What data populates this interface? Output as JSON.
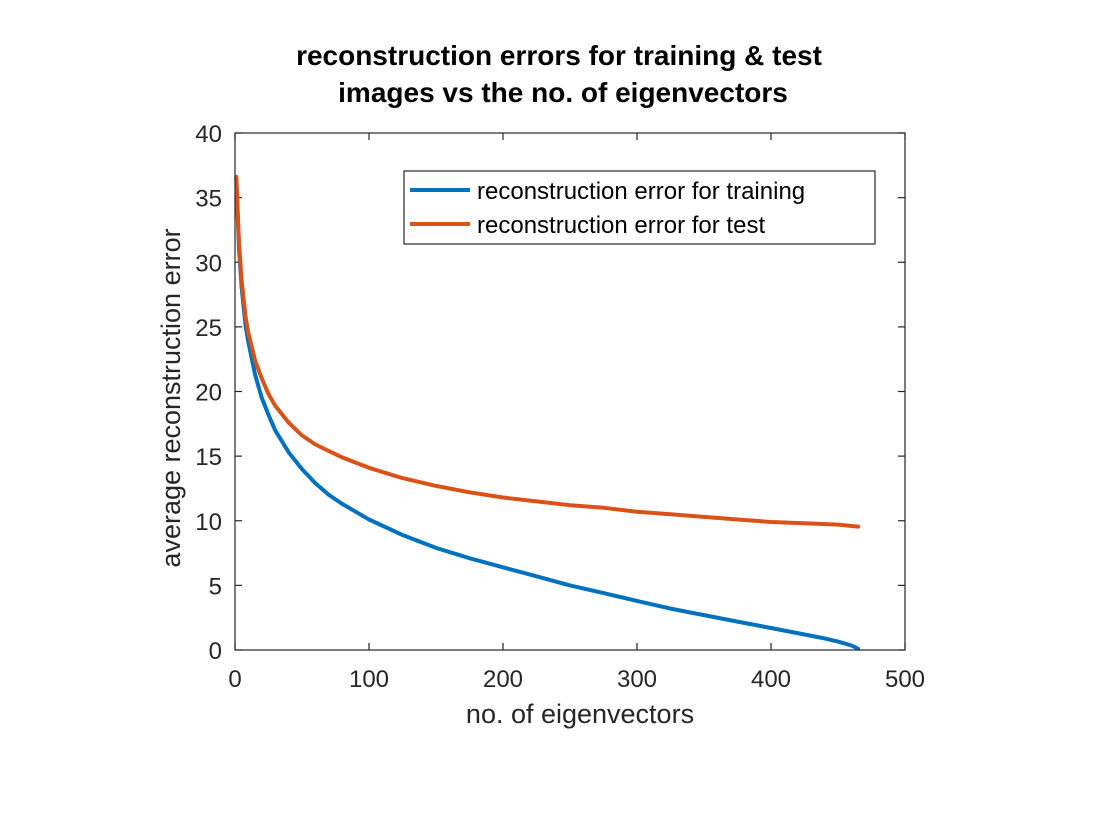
{
  "chart_data": {
    "type": "line",
    "title_lines": [
      "reconstruction errors for training & test",
      "images vs the no. of eigenvectors"
    ],
    "xlabel": "no. of eigenvectors",
    "ylabel": "average reconstruction error",
    "xlim": [
      0,
      500
    ],
    "ylim": [
      0,
      40
    ],
    "xticks": [
      0,
      100,
      200,
      300,
      400,
      500
    ],
    "yticks": [
      0,
      5,
      10,
      15,
      20,
      25,
      30,
      35,
      40
    ],
    "grid": false,
    "legend_position": "top-right",
    "series": [
      {
        "name": "reconstruction error for training",
        "color": "#0072BD",
        "x": [
          1,
          3,
          5,
          8,
          10,
          15,
          20,
          25,
          30,
          40,
          50,
          60,
          70,
          80,
          90,
          100,
          125,
          150,
          175,
          200,
          225,
          250,
          275,
          300,
          325,
          350,
          375,
          400,
          425,
          440,
          450,
          460,
          465
        ],
        "y": [
          36.5,
          31,
          28,
          25,
          23.8,
          21.3,
          19.5,
          18.2,
          17,
          15.3,
          14,
          12.9,
          12,
          11.3,
          10.7,
          10.1,
          8.9,
          7.9,
          7.1,
          6.4,
          5.7,
          5.0,
          4.4,
          3.8,
          3.2,
          2.7,
          2.2,
          1.7,
          1.2,
          0.9,
          0.65,
          0.35,
          0.1
        ]
      },
      {
        "name": "reconstruction error for test",
        "color": "#D95319",
        "x": [
          1,
          3,
          5,
          8,
          10,
          15,
          20,
          25,
          30,
          40,
          50,
          60,
          70,
          80,
          90,
          100,
          125,
          150,
          175,
          200,
          225,
          250,
          275,
          300,
          325,
          350,
          375,
          400,
          425,
          450,
          465
        ],
        "y": [
          36.6,
          31.5,
          28.5,
          25.7,
          24.5,
          22.4,
          21,
          19.8,
          18.9,
          17.6,
          16.6,
          15.9,
          15.4,
          14.9,
          14.5,
          14.1,
          13.3,
          12.7,
          12.2,
          11.8,
          11.5,
          11.2,
          11,
          10.7,
          10.5,
          10.3,
          10.1,
          9.9,
          9.8,
          9.7,
          9.55
        ]
      }
    ]
  }
}
